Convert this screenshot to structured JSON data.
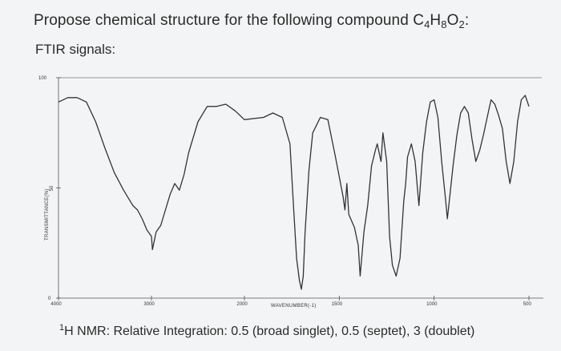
{
  "question": {
    "text_prefix": "Propose chemical structure for the following compound ",
    "formula": [
      {
        "t": "C",
        "sub": "4"
      },
      {
        "t": "H",
        "sub": "8"
      },
      {
        "t": "O",
        "sub": "2"
      }
    ],
    "text_suffix": ":"
  },
  "ftir_label": "FTIR signals:",
  "nmr": {
    "nucleus_mass": "1",
    "nucleus": "H",
    "text": " NMR: Relative Integration: 0.5 (broad singlet), 0.5 (septet), 3 (doublet)"
  },
  "chart_data": {
    "type": "line",
    "title": "",
    "xlabel": "WAVENUMBER(-1)",
    "ylabel": "TRANSMITTANCE(%)",
    "x_reversed": true,
    "xlim": [
      4000,
      500
    ],
    "ylim": [
      0,
      100
    ],
    "x_ticks": [
      "4000",
      "3000",
      "2000",
      "1500",
      "1000",
      "500"
    ],
    "y_ticks": [
      "100",
      "50",
      "0"
    ],
    "series": [
      {
        "x": [
          4000,
          3900,
          3800,
          3700,
          3600,
          3500,
          3400,
          3300,
          3200,
          3150,
          3100,
          3050,
          3000,
          2990,
          2970,
          2950,
          2900,
          2850,
          2800,
          2750,
          2700,
          2650,
          2600,
          2500,
          2400,
          2300,
          2200,
          2100,
          2000,
          1900,
          1850,
          1800,
          1760,
          1740,
          1725,
          1710,
          1700,
          1690,
          1680,
          1660,
          1640,
          1600,
          1560,
          1520,
          1480,
          1470,
          1460,
          1450,
          1420,
          1400,
          1390,
          1370,
          1350,
          1330,
          1310,
          1300,
          1280,
          1270,
          1250,
          1235,
          1220,
          1200,
          1180,
          1160,
          1150,
          1140,
          1120,
          1100,
          1080,
          1060,
          1040,
          1020,
          1000,
          980,
          960,
          940,
          930,
          920,
          900,
          880,
          860,
          840,
          820,
          800,
          780,
          760,
          740,
          720,
          700,
          680,
          660,
          640,
          620,
          600,
          580,
          560,
          540,
          520,
          500
        ],
        "y": [
          89,
          91,
          91,
          89,
          80,
          68,
          57,
          49,
          42,
          40,
          36,
          31,
          28,
          22,
          26,
          30,
          33,
          40,
          47,
          52,
          49,
          56,
          66,
          80,
          87,
          87,
          88,
          85,
          81,
          82,
          84,
          82,
          70,
          40,
          18,
          8,
          4,
          10,
          30,
          58,
          75,
          82,
          81,
          64,
          46,
          40,
          52,
          38,
          32,
          24,
          10,
          30,
          42,
          60,
          67,
          70,
          62,
          75,
          62,
          28,
          15,
          10,
          18,
          44,
          52,
          64,
          70,
          62,
          42,
          66,
          80,
          89,
          90,
          82,
          62,
          45,
          36,
          44,
          60,
          74,
          84,
          87,
          84,
          72,
          62,
          67,
          74,
          82,
          90,
          88,
          83,
          77,
          62,
          52,
          62,
          80,
          90,
          92,
          87
        ]
      }
    ]
  }
}
